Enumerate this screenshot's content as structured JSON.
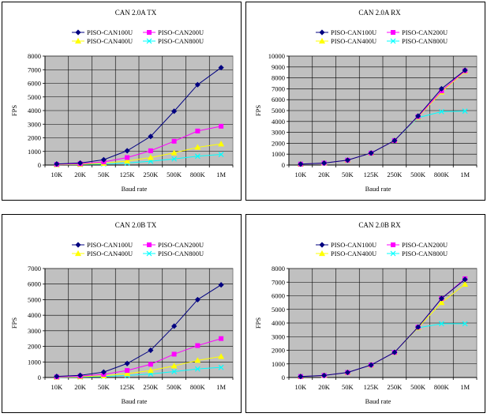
{
  "chart_data": [
    {
      "type": "line",
      "title": "CAN 2.0A TX",
      "xlabel": "Baud rate",
      "ylabel": "FPS",
      "ylim": [
        0,
        8000
      ],
      "yticks": [
        0,
        1000,
        2000,
        3000,
        4000,
        5000,
        6000,
        7000,
        8000
      ],
      "categories": [
        "10K",
        "20K",
        "50K",
        "125K",
        "250K",
        "500K",
        "800K",
        "1M"
      ],
      "grid": true,
      "legend": "top",
      "series": [
        {
          "name": "PISO-CAN100U",
          "color": "#000080",
          "marker": "diamond",
          "values": [
            80,
            150,
            390,
            1050,
            2100,
            3950,
            5900,
            7150
          ]
        },
        {
          "name": "PISO-CAN200U",
          "color": "#ff00ff",
          "marker": "square",
          "values": [
            50,
            100,
            230,
            550,
            1050,
            1750,
            2500,
            2850
          ]
        },
        {
          "name": "PISO-CAN400U",
          "color": "#ffff00",
          "marker": "triangle",
          "values": [
            30,
            60,
            130,
            300,
            550,
            900,
            1300,
            1550
          ]
        },
        {
          "name": "PISO-CAN800U",
          "color": "#00ffff",
          "marker": "x",
          "values": [
            20,
            40,
            80,
            150,
            280,
            450,
            650,
            780
          ]
        }
      ]
    },
    {
      "type": "line",
      "title": "CAN 2.0A RX",
      "xlabel": "Baud rate",
      "ylabel": "FPS",
      "ylim": [
        0,
        10000
      ],
      "yticks": [
        0,
        1000,
        2000,
        3000,
        4000,
        5000,
        6000,
        7000,
        8000,
        9000,
        10000
      ],
      "categories": [
        "10K",
        "20K",
        "50K",
        "125K",
        "250K",
        "500K",
        "800K",
        "1M"
      ],
      "grid": true,
      "legend": "top",
      "series": [
        {
          "name": "PISO-CAN100U",
          "color": "#000080",
          "marker": "diamond",
          "values": [
            90,
            180,
            450,
            1100,
            2250,
            4500,
            7000,
            8700
          ]
        },
        {
          "name": "PISO-CAN200U",
          "color": "#ff00ff",
          "marker": "square",
          "values": [
            90,
            180,
            450,
            1100,
            2250,
            4450,
            6800,
            8650
          ]
        },
        {
          "name": "PISO-CAN400U",
          "color": "#ffff00",
          "marker": "triangle",
          "values": [
            90,
            180,
            450,
            1100,
            2250,
            4400,
            6700,
            8600
          ]
        },
        {
          "name": "PISO-CAN800U",
          "color": "#00ffff",
          "marker": "x",
          "values": [
            90,
            180,
            450,
            1100,
            2250,
            4350,
            4900,
            4950
          ]
        }
      ]
    },
    {
      "type": "line",
      "title": "CAN 2.0B TX",
      "xlabel": "Baud rate",
      "ylabel": "FPS",
      "ylim": [
        0,
        7000
      ],
      "yticks": [
        0,
        1000,
        2000,
        3000,
        4000,
        5000,
        6000,
        7000
      ],
      "categories": [
        "10K",
        "20K",
        "50K",
        "125K",
        "250K",
        "500K",
        "800K",
        "1M"
      ],
      "grid": true,
      "legend": "top",
      "series": [
        {
          "name": "PISO-CAN100U",
          "color": "#000080",
          "marker": "diamond",
          "values": [
            70,
            140,
            350,
            900,
            1750,
            3300,
            5000,
            5950
          ]
        },
        {
          "name": "PISO-CAN200U",
          "color": "#ff00ff",
          "marker": "square",
          "values": [
            40,
            90,
            200,
            450,
            850,
            1500,
            2050,
            2500
          ]
        },
        {
          "name": "PISO-CAN400U",
          "color": "#ffff00",
          "marker": "triangle",
          "values": [
            25,
            50,
            110,
            250,
            450,
            750,
            1100,
            1350
          ]
        },
        {
          "name": "PISO-CAN800U",
          "color": "#00ffff",
          "marker": "x",
          "values": [
            15,
            30,
            70,
            130,
            230,
            380,
            550,
            650
          ]
        }
      ]
    },
    {
      "type": "line",
      "title": "CAN 2.0B RX",
      "xlabel": "Baud rate",
      "ylabel": "FPS",
      "ylim": [
        0,
        8000
      ],
      "yticks": [
        0,
        1000,
        2000,
        3000,
        4000,
        5000,
        6000,
        7000,
        8000
      ],
      "categories": [
        "10K",
        "20K",
        "50K",
        "125K",
        "250K",
        "500K",
        "800K",
        "1M"
      ],
      "grid": true,
      "legend": "top",
      "series": [
        {
          "name": "PISO-CAN100U",
          "color": "#000080",
          "marker": "diamond",
          "values": [
            75,
            150,
            370,
            920,
            1850,
            3700,
            5800,
            7200
          ]
        },
        {
          "name": "PISO-CAN200U",
          "color": "#ff00ff",
          "marker": "square",
          "values": [
            75,
            150,
            370,
            920,
            1850,
            3700,
            5800,
            7250
          ]
        },
        {
          "name": "PISO-CAN400U",
          "color": "#ffff00",
          "marker": "triangle",
          "values": [
            75,
            150,
            370,
            920,
            1850,
            3650,
            5500,
            6850
          ]
        },
        {
          "name": "PISO-CAN800U",
          "color": "#00ffff",
          "marker": "x",
          "values": [
            75,
            150,
            370,
            920,
            1850,
            3650,
            3950,
            3950
          ]
        }
      ]
    }
  ]
}
